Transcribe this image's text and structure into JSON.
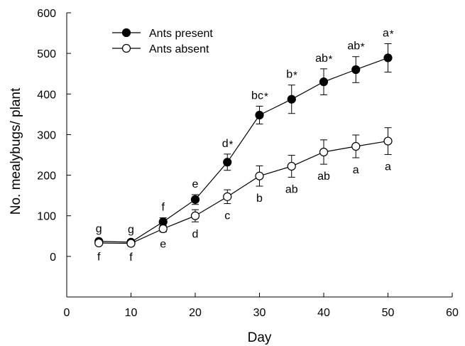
{
  "chart_data": {
    "type": "line",
    "xlabel": "Day",
    "ylabel": "No. mealybugs/ plant",
    "xlim": [
      0,
      60
    ],
    "ylim": [
      -100,
      600
    ],
    "xticks": [
      0,
      10,
      20,
      30,
      40,
      50,
      60
    ],
    "yticks": [
      0,
      100,
      200,
      300,
      400,
      500,
      600
    ],
    "grid": false,
    "legend_position": "top-left",
    "x": [
      5,
      10,
      15,
      20,
      25,
      30,
      35,
      40,
      45,
      50
    ],
    "series": [
      {
        "name": "Ants present",
        "marker": "filled-circle",
        "color": "#000000",
        "values": [
          37,
          35,
          85,
          140,
          232,
          348,
          387,
          430,
          460,
          489
        ],
        "error": [
          5,
          5,
          10,
          12,
          20,
          22,
          35,
          32,
          32,
          35
        ],
        "letters": [
          "g",
          "g",
          "f",
          "e",
          "d",
          "bc",
          "b",
          "ab",
          "ab",
          "a"
        ],
        "stars": [
          "",
          "",
          "",
          "",
          "*",
          "*",
          "*",
          "*",
          "*",
          "*"
        ]
      },
      {
        "name": "Ants absent",
        "marker": "open-circle",
        "color": "#000000",
        "values": [
          33,
          32,
          68,
          100,
          147,
          198,
          222,
          257,
          271,
          284
        ],
        "error": [
          4,
          4,
          8,
          15,
          17,
          25,
          27,
          30,
          28,
          33
        ],
        "letters": [
          "f",
          "f",
          "e",
          "d",
          "c",
          "b",
          "ab",
          "ab",
          "a",
          "a"
        ],
        "stars": [
          "",
          "",
          "",
          "",
          "",
          "",
          "",
          "",
          "",
          ""
        ]
      }
    ]
  }
}
